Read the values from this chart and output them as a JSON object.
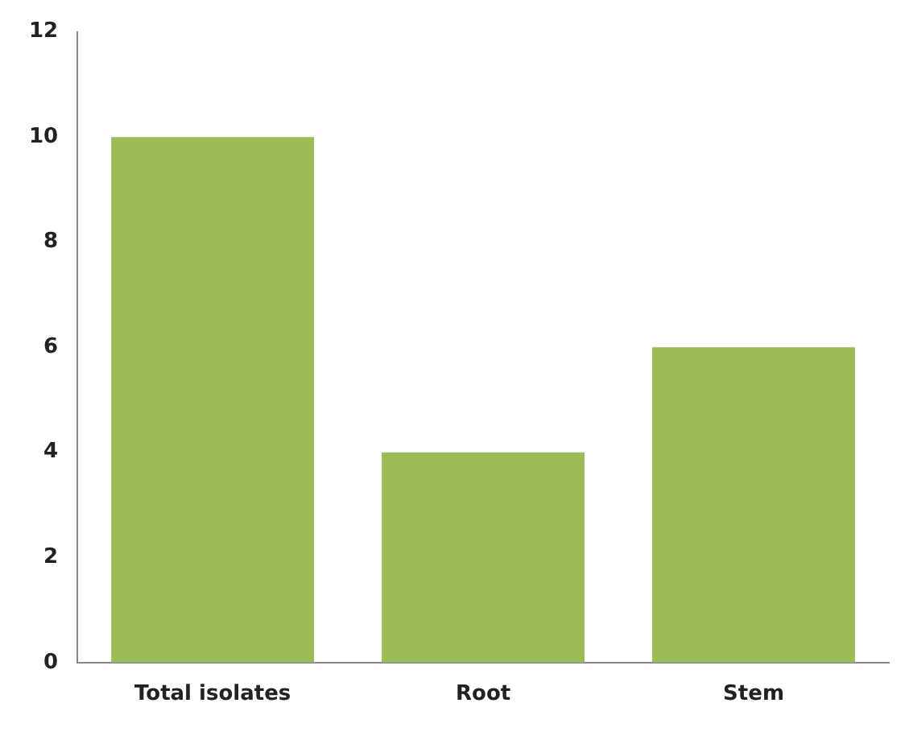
{
  "chart_data": {
    "type": "bar",
    "categories": [
      "Total isolates",
      "Root",
      "Stem"
    ],
    "values": [
      10,
      4,
      6
    ],
    "color": "#9bbb59",
    "ylim": [
      0,
      12
    ],
    "yticks": [
      0,
      2,
      4,
      6,
      8,
      10,
      12
    ],
    "grid": false,
    "legend": false
  }
}
